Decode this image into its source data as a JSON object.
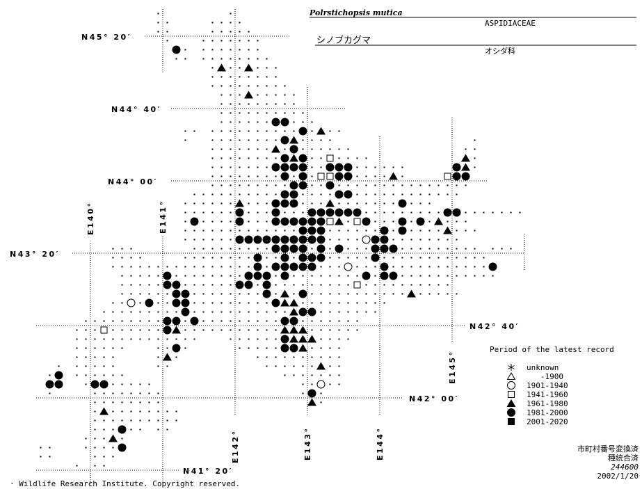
{
  "header": {
    "scientific_name": "Polrstichopsis mutica",
    "family_latin": "ASPIDIACEAE",
    "japanese_name": "シノブカグマ",
    "family_japanese": "オシダ科"
  },
  "graticule": {
    "latitudes": [
      "N45° 20′",
      "N44° 40′",
      "N44° 00′",
      "N43° 20′",
      "N42° 40′",
      "N42° 00′",
      "N41° 20′"
    ],
    "longitudes": [
      "E140°",
      "E141°",
      "E142°",
      "E143°",
      "E144°",
      "E145°"
    ]
  },
  "legend": {
    "title": "Period of the latest record",
    "items": [
      {
        "symbol": "asterisk",
        "label": "unknown"
      },
      {
        "symbol": "open-triangle",
        "label": "   -1900"
      },
      {
        "symbol": "open-circle",
        "label": "1901-1940"
      },
      {
        "symbol": "open-square",
        "label": "1941-1960"
      },
      {
        "symbol": "filled-triangle",
        "label": "1961-1980"
      },
      {
        "symbol": "filled-circle",
        "label": "1981-2000"
      },
      {
        "symbol": "filled-square",
        "label": "2001-2020"
      }
    ]
  },
  "notes": {
    "line1": "市町村番号変換済",
    "line2": "種統合済",
    "code": "244600",
    "date": "2002/1/20"
  },
  "footer": {
    "copyright": "· Wildlife Research Institute. Copyright reserved."
  },
  "map": {
    "mesh": {
      "north_edge_lat": 45.58333,
      "west_edge_lon": 139.25,
      "cell_lat_min": 5,
      "cell_lon_min": 7.5,
      "symbols": {
        ".": "surveyed",
        "A": "filled-triangle",
        "O": "filled-circle",
        "o": "open-circle",
        "s": "open-square"
      },
      "rows": [
        "             .       .",
        "             ..    ....",
        "             ..    .....",
        "              .   .......",
        "               O. .......",
        "               .. ........",
        "                   .A..A...",
        "                   ........",
        "                   .........",
        "                    ...A.....",
        "                    .........",
        "                    ..........",
        "                    ......OO...",
        "                .. ..........O.A..",
        "                .  ........OA....               .",
        "                   .......A.O......            ..",
        "                   ........OAO..s....          A.",
        "                   .......OOOO..OOO......     OA.",
        "                   ........O.O.ssOO....A.    sOO",
        "                   .........OO..O...............",
        "                 ..........OO....OO............",
        "                ......A...OOO...A.......O...",
        "                ......O...O...OOOOOO.........OO.......",
        "                .O....O...OOOOOOsA.sO...O.O.A...",
        "                .............OOO......O.O....A...",
        "                ......OOOOOOOOOO....oOO........",
        "        ...      .........OOOO.O.O...OOO......... ...",
        "        ....    ........O..O.OOO.....O............",
        "        ................O.OOOOO...o...O...........O",
        "         .....O........OOO.O........O.OO...........",
        "         .....OO......OO.O.........s..........",
        "         ......OO........O.A.O...........A.....",
        "        ..o.O..OO.........OAA..........",
        "       .........O...........AOO.......",
        "     .........OO.O.........OO.......",
        "    ...s......OA...........AAA......",
        "    ..............   ......OAAA....",
        "    ......   ..O.     .....OOA....",
        "    .....    .A.        ..........",
        "  . .....    ..          ......A..",
        " .O ......                 .......",
        " OO  .OO.....                ..o..",
        " .    ........               .O.",
        "      ........                A.",
        "      .A........",
        "      ..........",
        "      ...O.. ..",
        "     ...A.",
        "..   ....O",
        "..    ...",
        "    . .."
      ]
    }
  }
}
